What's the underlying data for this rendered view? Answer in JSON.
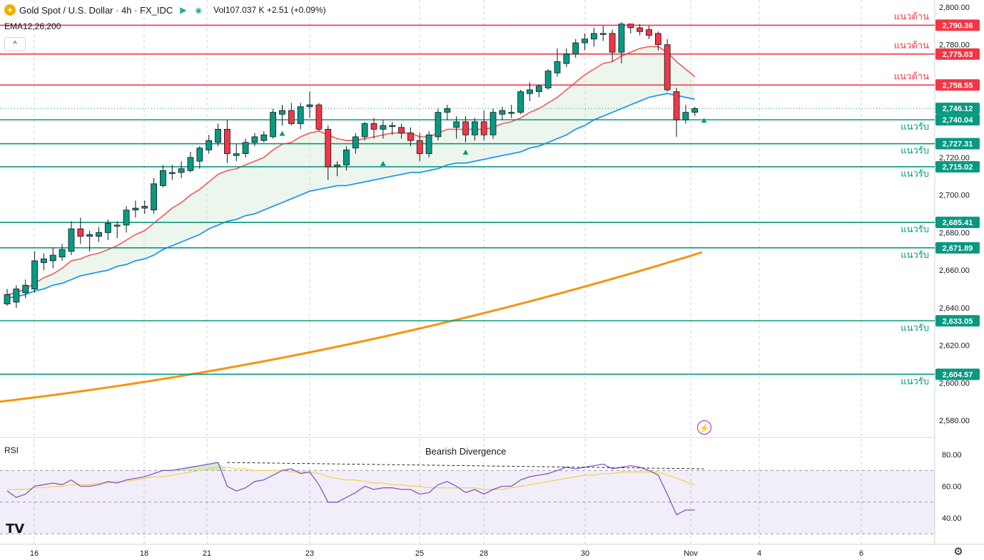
{
  "header": {
    "symbol": "Gold Spot / U.S. Dollar",
    "interval": "4h",
    "exchange": "FX_IDC",
    "title": "Gold Spot / U.S. Dollar · 4h · FX_IDC",
    "vol_label": "Vol",
    "vol_value": "107.037 K",
    "change": "+2.51 (+0.09%)",
    "indicator": "EMA12,26,200",
    "collapse": "^",
    "rsi_label": "RSI",
    "logo": "TV"
  },
  "colors": {
    "up": "#089981",
    "down": "#f23645",
    "ema12": "#f05a5a",
    "ema26": "#2196f3",
    "ema200": "#f7940f",
    "resistance": "#f23645",
    "support": "#089981",
    "rsi": "#7e57c2",
    "rsi_ma": "#f5d04a",
    "current": "#089981"
  },
  "chart_data": [
    {
      "type": "candlestick",
      "symbol": "XAUUSD",
      "timeframe": "4h",
      "x_tick_labels": [
        "16",
        "18",
        "21",
        "23",
        "25",
        "28",
        "30",
        "Nov",
        "4",
        "6"
      ],
      "y_tick_labels": [
        "2,800.00",
        "2,780.00",
        "2,760.00",
        "2,740.00",
        "2,720.00",
        "2,700.00",
        "2,680.00",
        "2,660.00",
        "2,640.00",
        "2,620.00",
        "2,600.00",
        "2,580.00"
      ],
      "ylim": [
        2577,
        2803
      ],
      "current_price": 2746.12,
      "resistance": [
        {
          "label": "แนวต้าน",
          "value": 2790.36
        },
        {
          "label": "แนวต้าน",
          "value": 2775.03
        },
        {
          "label": "แนวต้าน",
          "value": 2758.55
        }
      ],
      "support": [
        {
          "label": "แนวรับ",
          "value": 2740.04
        },
        {
          "label": "แนวรับ",
          "value": 2727.31
        },
        {
          "label": "แนวรับ",
          "value": 2715.02
        },
        {
          "label": "แนวรับ",
          "value": 2685.41
        },
        {
          "label": "แนวรับ",
          "value": 2671.89
        },
        {
          "label": "แนวรับ",
          "value": 2633.05
        },
        {
          "label": "แนวรับ",
          "value": 2604.57
        }
      ],
      "ohlc": [
        [
          2642,
          2650,
          2641,
          2647
        ],
        [
          2643,
          2652,
          2640,
          2650
        ],
        [
          2648,
          2655,
          2645,
          2652
        ],
        [
          2650,
          2670,
          2648,
          2665
        ],
        [
          2664,
          2669,
          2660,
          2666
        ],
        [
          2665,
          2672,
          2661,
          2668
        ],
        [
          2667,
          2674,
          2665,
          2671
        ],
        [
          2670,
          2686,
          2668,
          2682
        ],
        [
          2682,
          2688,
          2674,
          2678
        ],
        [
          2678,
          2681,
          2670,
          2679
        ],
        [
          2678,
          2683,
          2675,
          2680
        ],
        [
          2680,
          2687,
          2676,
          2685
        ],
        [
          2684,
          2686,
          2677,
          2684
        ],
        [
          2684,
          2694,
          2680,
          2692
        ],
        [
          2692,
          2697,
          2688,
          2693
        ],
        [
          2693,
          2697,
          2690,
          2694
        ],
        [
          2692,
          2709,
          2690,
          2706
        ],
        [
          2705,
          2716,
          2704,
          2713
        ],
        [
          2712,
          2716,
          2708,
          2712
        ],
        [
          2712,
          2718,
          2709,
          2714
        ],
        [
          2713,
          2723,
          2712,
          2720
        ],
        [
          2718,
          2726,
          2714,
          2725
        ],
        [
          2724,
          2732,
          2722,
          2729
        ],
        [
          2728,
          2738,
          2726,
          2735
        ],
        [
          2735,
          2740,
          2717,
          2722
        ],
        [
          2721,
          2727,
          2718,
          2722
        ],
        [
          2722,
          2730,
          2720,
          2728
        ],
        [
          2728,
          2733,
          2726,
          2731
        ],
        [
          2729,
          2734,
          2728,
          2732
        ],
        [
          2731,
          2746,
          2730,
          2744
        ],
        [
          2743,
          2748,
          2737,
          2745
        ],
        [
          2745,
          2749,
          2737,
          2738
        ],
        [
          2738,
          2749,
          2735,
          2747
        ],
        [
          2747,
          2755,
          2741,
          2748
        ],
        [
          2748,
          2749,
          2734,
          2735
        ],
        [
          2735,
          2737,
          2708,
          2715
        ],
        [
          2715,
          2718,
          2710,
          2716
        ],
        [
          2716,
          2726,
          2713,
          2724
        ],
        [
          2725,
          2733,
          2722,
          2731
        ],
        [
          2731,
          2739,
          2729,
          2738
        ],
        [
          2738,
          2741,
          2730,
          2735
        ],
        [
          2735,
          2740,
          2730,
          2737
        ],
        [
          2737,
          2739,
          2732,
          2737
        ],
        [
          2736,
          2738,
          2730,
          2733
        ],
        [
          2733,
          2736,
          2726,
          2729
        ],
        [
          2729,
          2733,
          2718,
          2722
        ],
        [
          2722,
          2734,
          2720,
          2732
        ],
        [
          2731,
          2746,
          2729,
          2744
        ],
        [
          2744,
          2748,
          2740,
          2746
        ],
        [
          2736,
          2742,
          2730,
          2739
        ],
        [
          2739,
          2742,
          2728,
          2732
        ],
        [
          2732,
          2741,
          2729,
          2739
        ],
        [
          2739,
          2745,
          2729,
          2732
        ],
        [
          2732,
          2746,
          2730,
          2744
        ],
        [
          2743,
          2747,
          2740,
          2745
        ],
        [
          2744,
          2748,
          2741,
          2744
        ],
        [
          2744,
          2756,
          2743,
          2755
        ],
        [
          2754,
          2760,
          2750,
          2756
        ],
        [
          2755,
          2759,
          2752,
          2758
        ],
        [
          2757,
          2767,
          2756,
          2766
        ],
        [
          2765,
          2778,
          2763,
          2771
        ],
        [
          2770,
          2778,
          2768,
          2775
        ],
        [
          2775,
          2783,
          2773,
          2781
        ],
        [
          2781,
          2786,
          2777,
          2783
        ],
        [
          2783,
          2789,
          2779,
          2786
        ],
        [
          2786,
          2790,
          2782,
          2786
        ],
        [
          2786,
          2788,
          2771,
          2776
        ],
        [
          2776,
          2792,
          2770,
          2791
        ],
        [
          2791,
          2790,
          2786,
          2789
        ],
        [
          2789,
          2791,
          2785,
          2787
        ],
        [
          2788,
          2790,
          2783,
          2785
        ],
        [
          2786,
          2787,
          2777,
          2780
        ],
        [
          2780,
          2783,
          2755,
          2756
        ],
        [
          2755,
          2757,
          2731,
          2740
        ],
        [
          2740,
          2748,
          2738,
          2744
        ],
        [
          2744,
          2747,
          2742,
          2746
        ]
      ],
      "ema12": [
        2647,
        2648,
        2650,
        2653,
        2656,
        2658,
        2661,
        2665,
        2666,
        2668,
        2669,
        2671,
        2673,
        2676,
        2679,
        2681,
        2685,
        2689,
        2693,
        2696,
        2700,
        2703,
        2707,
        2711,
        2713,
        2714,
        2716,
        2718,
        2720,
        2724,
        2727,
        2728,
        2731,
        2733,
        2734,
        2732,
        2730,
        2729,
        2729,
        2730,
        2731,
        2732,
        2733,
        2733,
        2733,
        2731,
        2731,
        2733,
        2735,
        2735,
        2735,
        2735,
        2735,
        2736,
        2738,
        2739,
        2741,
        2744,
        2746,
        2749,
        2752,
        2756,
        2760,
        2764,
        2767,
        2770,
        2771,
        2774,
        2776,
        2778,
        2779,
        2779,
        2776,
        2771,
        2767,
        2763
      ],
      "ema26": [
        2645,
        2646,
        2647,
        2649,
        2650,
        2652,
        2653,
        2655,
        2657,
        2658,
        2659,
        2660,
        2662,
        2663,
        2665,
        2666,
        2668,
        2671,
        2673,
        2675,
        2677,
        2679,
        2682,
        2684,
        2686,
        2687,
        2689,
        2690,
        2692,
        2694,
        2696,
        2698,
        2700,
        2702,
        2703,
        2704,
        2705,
        2705,
        2706,
        2707,
        2708,
        2709,
        2710,
        2711,
        2712,
        2712,
        2713,
        2714,
        2716,
        2717,
        2717,
        2718,
        2719,
        2720,
        2721,
        2722,
        2723,
        2725,
        2726,
        2728,
        2730,
        2732,
        2735,
        2737,
        2740,
        2742,
        2744,
        2746,
        2748,
        2750,
        2752,
        2753,
        2754,
        2753,
        2752,
        2751
      ],
      "ema200": {
        "start": 2590,
        "end": 2670
      }
    },
    {
      "type": "line",
      "title": "RSI",
      "annotation": "Bearish Divergence",
      "y_tick_labels": [
        "80.00",
        "60.00",
        "40.00"
      ],
      "ylim": [
        30,
        86
      ],
      "bands": [
        30,
        50,
        70
      ],
      "rsi": [
        57,
        53,
        55,
        60,
        61,
        62,
        61,
        64,
        60,
        60,
        61,
        63,
        62,
        64,
        65,
        66,
        68,
        70,
        70,
        71,
        72,
        73,
        74,
        75,
        60,
        57,
        59,
        63,
        64,
        67,
        70,
        71,
        68,
        69,
        61,
        50,
        50,
        53,
        56,
        60,
        58,
        59,
        59,
        58,
        58,
        55,
        56,
        61,
        63,
        60,
        56,
        58,
        55,
        58,
        60,
        60,
        64,
        66,
        67,
        68,
        70,
        72,
        71,
        72,
        73,
        74,
        71,
        72,
        73,
        72,
        70,
        67,
        55,
        42,
        45,
        45
      ],
      "rsi_ma": [
        58,
        58,
        58,
        59,
        59,
        60,
        60,
        61,
        61,
        61,
        62,
        62,
        63,
        63,
        64,
        65,
        66,
        66,
        67,
        68,
        69,
        70,
        71,
        72,
        72,
        71,
        71,
        70,
        70,
        70,
        70,
        69,
        69,
        69,
        68,
        66,
        65,
        64,
        64,
        63,
        62,
        62,
        61,
        61,
        60,
        60,
        59,
        59,
        59,
        59,
        59,
        59,
        58,
        58,
        58,
        59,
        60,
        61,
        62,
        63,
        64,
        65,
        66,
        67,
        67,
        68,
        68,
        69,
        69,
        69,
        69,
        69,
        67,
        65,
        63,
        61
      ]
    }
  ]
}
